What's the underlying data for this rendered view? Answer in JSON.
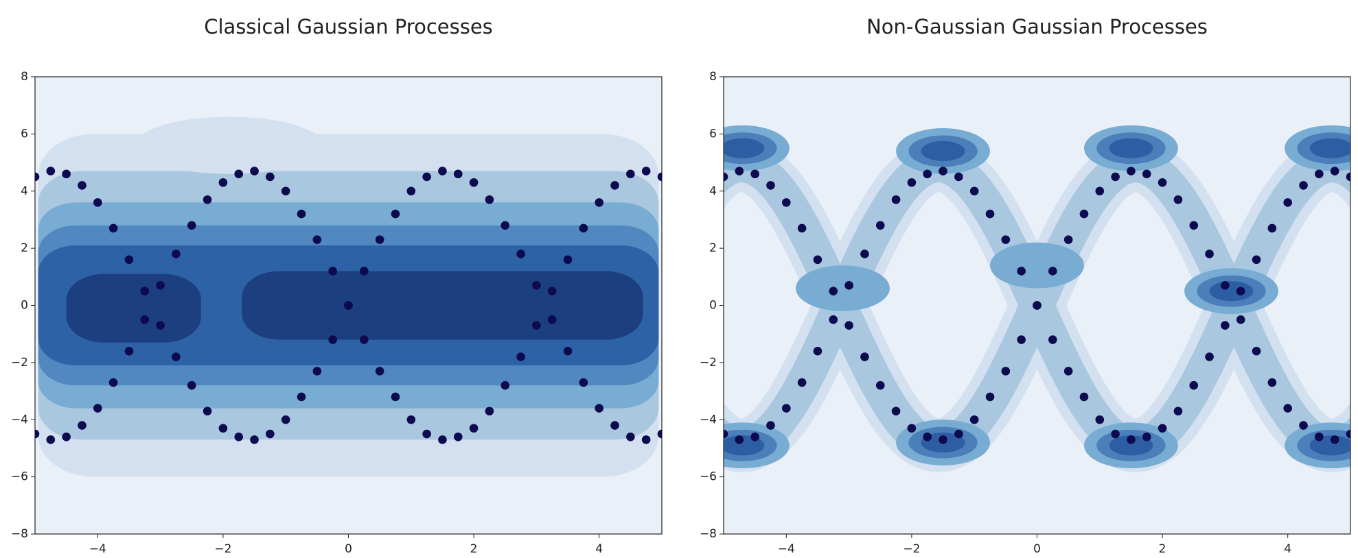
{
  "chart_data": [
    {
      "type": "scatter",
      "title": "Classical Gaussian Processes",
      "color": "#0d0a4f",
      "xlim": [
        -5,
        5
      ],
      "ylim": [
        -8,
        8
      ],
      "xticks": [
        {
          "value": -4,
          "label": "−4"
        },
        {
          "value": -2,
          "label": "−2"
        },
        0,
        2,
        4
      ],
      "yticks": [
        {
          "value": -8,
          "label": "−8"
        },
        {
          "value": -6,
          "label": "−6"
        },
        {
          "value": -4,
          "label": "−4"
        },
        {
          "value": -2,
          "label": "−2"
        },
        0,
        2,
        4,
        6,
        8
      ],
      "x": [
        -5,
        -4.75,
        -4.5,
        -4.25,
        -4,
        -3.75,
        -3.5,
        -3.25,
        -3,
        -2.75,
        -2.5,
        -2.25,
        -2,
        -1.75,
        -1.5,
        -1.25,
        -1,
        -0.75,
        -0.5,
        -0.25,
        0,
        0.25,
        0.5,
        0.75,
        1,
        1.25,
        1.5,
        1.75,
        2,
        2.25,
        2.5,
        2.75,
        3,
        3.25,
        3.5,
        3.75,
        4,
        4.25,
        4.5,
        4.75,
        5,
        -5,
        -4.75,
        -4.5,
        -4.25,
        -4,
        -3.75,
        -3.5,
        -3.25,
        -3,
        -2.75,
        -2.5,
        -2.25,
        -2,
        -1.75,
        -1.5,
        -1.25,
        -1,
        -0.75,
        -0.5,
        -0.25,
        0,
        0.25,
        0.5,
        0.75,
        1,
        1.25,
        1.5,
        1.75,
        2,
        2.25,
        2.5,
        2.75,
        3,
        3.25,
        3.5,
        3.75,
        4,
        4.25,
        4.5,
        4.75,
        5
      ],
      "y": [
        4.5,
        4.7,
        4.6,
        4.2,
        3.6,
        2.7,
        1.6,
        0.5,
        -0.7,
        -1.8,
        -2.8,
        -3.7,
        -4.3,
        -4.6,
        -4.7,
        -4.5,
        -4.0,
        -3.2,
        -2.3,
        -1.2,
        0,
        1.2,
        2.3,
        3.2,
        4.0,
        4.5,
        4.7,
        4.6,
        4.3,
        3.7,
        2.8,
        1.8,
        0.7,
        -0.5,
        -1.6,
        -2.7,
        -3.6,
        -4.2,
        -4.6,
        -4.7,
        -4.5,
        -4.5,
        -4.7,
        -4.6,
        -4.2,
        -3.6,
        -2.7,
        -1.6,
        -0.5,
        0.7,
        1.8,
        2.8,
        3.7,
        4.3,
        4.6,
        4.7,
        4.5,
        4.0,
        3.2,
        2.3,
        1.2,
        0,
        -1.2,
        -2.3,
        -3.2,
        -4.0,
        -4.5,
        -4.7,
        -4.6,
        -4.3,
        -3.7,
        -2.8,
        -1.8,
        -0.7,
        0.5,
        1.6,
        2.7,
        3.6,
        4.2,
        4.6,
        4.7,
        4.5
      ]
    },
    {
      "type": "scatter",
      "title": "Non-Gaussian Gaussian Processes",
      "color": "#0d0a4f",
      "xlim": [
        -5,
        5
      ],
      "ylim": [
        -8,
        8
      ],
      "xticks": [
        {
          "value": -4,
          "label": "−4"
        },
        {
          "value": -2,
          "label": "−2"
        },
        0,
        2,
        4
      ],
      "yticks": [
        {
          "value": -8,
          "label": "−8"
        },
        {
          "value": -6,
          "label": "−6"
        },
        {
          "value": -4,
          "label": "−4"
        },
        {
          "value": -2,
          "label": "−2"
        },
        0,
        2,
        4,
        6,
        8
      ],
      "x": [
        -5,
        -4.75,
        -4.5,
        -4.25,
        -4,
        -3.75,
        -3.5,
        -3.25,
        -3,
        -2.75,
        -2.5,
        -2.25,
        -2,
        -1.75,
        -1.5,
        -1.25,
        -1,
        -0.75,
        -0.5,
        -0.25,
        0,
        0.25,
        0.5,
        0.75,
        1,
        1.25,
        1.5,
        1.75,
        2,
        2.25,
        2.5,
        2.75,
        3,
        3.25,
        3.5,
        3.75,
        4,
        4.25,
        4.5,
        4.75,
        5,
        -5,
        -4.75,
        -4.5,
        -4.25,
        -4,
        -3.75,
        -3.5,
        -3.25,
        -3,
        -2.75,
        -2.5,
        -2.25,
        -2,
        -1.75,
        -1.5,
        -1.25,
        -1,
        -0.75,
        -0.5,
        -0.25,
        0,
        0.25,
        0.5,
        0.75,
        1,
        1.25,
        1.5,
        1.75,
        2,
        2.25,
        2.5,
        2.75,
        3,
        3.25,
        3.5,
        3.75,
        4,
        4.25,
        4.5,
        4.75,
        5
      ],
      "y": [
        4.5,
        4.7,
        4.6,
        4.2,
        3.6,
        2.7,
        1.6,
        0.5,
        -0.7,
        -1.8,
        -2.8,
        -3.7,
        -4.3,
        -4.6,
        -4.7,
        -4.5,
        -4.0,
        -3.2,
        -2.3,
        -1.2,
        0,
        1.2,
        2.3,
        3.2,
        4.0,
        4.5,
        4.7,
        4.6,
        4.3,
        3.7,
        2.8,
        1.8,
        0.7,
        -0.5,
        -1.6,
        -2.7,
        -3.6,
        -4.2,
        -4.6,
        -4.7,
        -4.5,
        -4.5,
        -4.7,
        -4.6,
        -4.2,
        -3.6,
        -2.7,
        -1.6,
        -0.5,
        0.7,
        1.8,
        2.8,
        3.7,
        4.3,
        4.6,
        4.7,
        4.5,
        4.0,
        3.2,
        2.3,
        1.2,
        0,
        -1.2,
        -2.3,
        -3.2,
        -4.0,
        -4.5,
        -4.7,
        -4.6,
        -4.3,
        -3.7,
        -2.8,
        -1.8,
        -0.7,
        0.5,
        1.6,
        2.7,
        3.6,
        4.2,
        4.6,
        4.7,
        4.5
      ]
    }
  ]
}
